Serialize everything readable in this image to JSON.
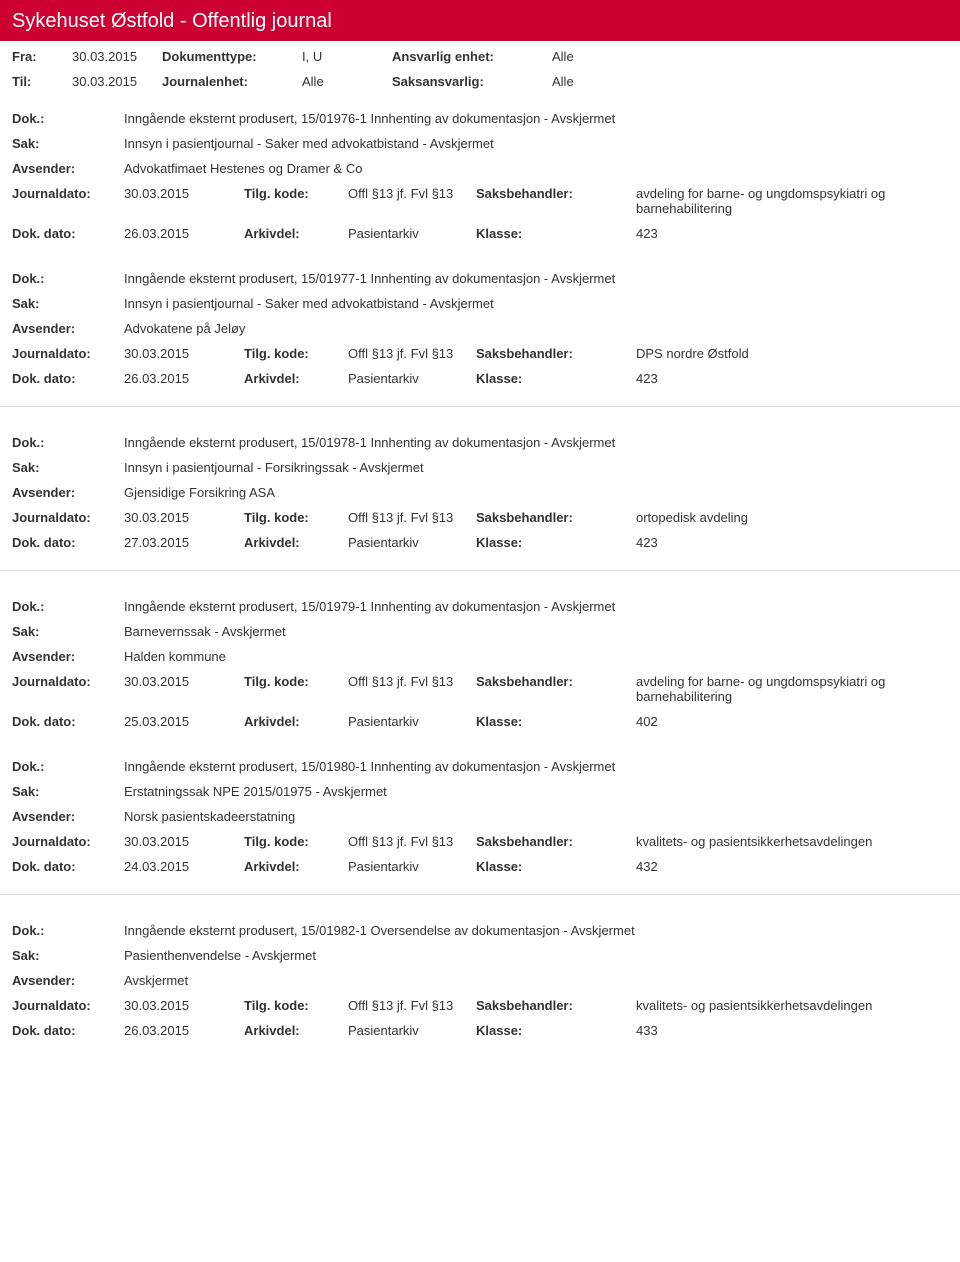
{
  "colors": {
    "header_bg": "#cc0033",
    "header_text": "#ffffff",
    "text": "#333333",
    "divider": "#dddddd",
    "bg": "#ffffff"
  },
  "header": {
    "title": "Sykehuset Østfold - Offentlig journal"
  },
  "meta": {
    "fra_label": "Fra:",
    "fra_value": "30.03.2015",
    "til_label": "Til:",
    "til_value": "30.03.2015",
    "doktype_label": "Dokumenttype:",
    "doktype_value": "I, U",
    "journalenhet_label": "Journalenhet:",
    "journalenhet_value": "Alle",
    "ansvarlig_label": "Ansvarlig enhet:",
    "ansvarlig_value": "Alle",
    "saksansvarlig_label": "Saksansvarlig:",
    "saksansvarlig_value": "Alle"
  },
  "labels": {
    "dok": "Dok.:",
    "sak": "Sak:",
    "avsender": "Avsender:",
    "journaldato": "Journaldato:",
    "dokdato": "Dok. dato:",
    "tilgkode": "Tilg. kode:",
    "arkivdel": "Arkivdel:",
    "saksbehandler": "Saksbehandler:",
    "klasse": "Klasse:"
  },
  "entries": [
    {
      "dok": "Inngående eksternt produsert, 15/01976-1 Innhenting av dokumentasjon - Avskjermet",
      "sak": "Innsyn i pasientjournal - Saker med advokatbistand - Avskjermet",
      "avsender": "Advokatfimaet Hestenes og Dramer & Co",
      "journaldato": "30.03.2015",
      "tilgkode": "Offl §13 jf. Fvl §13",
      "saksbehandler": "avdeling for barne- og ungdomspsykiatri og barnehabilitering",
      "dokdato": "26.03.2015",
      "arkivdel": "Pasientarkiv",
      "klasse": "423"
    },
    {
      "dok": "Inngående eksternt produsert, 15/01977-1 Innhenting av dokumentasjon - Avskjermet",
      "sak": "Innsyn i pasientjournal - Saker med advokatbistand - Avskjermet",
      "avsender": "Advokatene på Jeløy",
      "journaldato": "30.03.2015",
      "tilgkode": "Offl §13 jf. Fvl §13",
      "saksbehandler": "DPS nordre Østfold",
      "dokdato": "26.03.2015",
      "arkivdel": "Pasientarkiv",
      "klasse": "423"
    },
    {
      "dok": "Inngående eksternt produsert, 15/01978-1 Innhenting av dokumentasjon - Avskjermet",
      "sak": "Innsyn i pasientjournal - Forsikringssak - Avskjermet",
      "avsender": "Gjensidige Forsikring ASA",
      "journaldato": "30.03.2015",
      "tilgkode": "Offl §13 jf. Fvl §13",
      "saksbehandler": "ortopedisk avdeling",
      "dokdato": "27.03.2015",
      "arkivdel": "Pasientarkiv",
      "klasse": "423"
    },
    {
      "dok": "Inngående eksternt produsert, 15/01979-1 Innhenting av dokumentasjon - Avskjermet",
      "sak": "Barnevernssak - Avskjermet",
      "avsender": "Halden kommune",
      "journaldato": "30.03.2015",
      "tilgkode": "Offl §13 jf. Fvl §13",
      "saksbehandler": "avdeling for barne- og ungdomspsykiatri og barnehabilitering",
      "dokdato": "25.03.2015",
      "arkivdel": "Pasientarkiv",
      "klasse": "402"
    },
    {
      "dok": "Inngående eksternt produsert, 15/01980-1 Innhenting av dokumentasjon - Avskjermet",
      "sak": "Erstatningssak NPE 2015/01975 - Avskjermet",
      "avsender": "Norsk pasientskadeerstatning",
      "journaldato": "30.03.2015",
      "tilgkode": "Offl §13 jf. Fvl §13",
      "saksbehandler": "kvalitets- og pasientsikkerhetsavdelingen",
      "dokdato": "24.03.2015",
      "arkivdel": "Pasientarkiv",
      "klasse": "432"
    },
    {
      "dok": "Inngående eksternt produsert, 15/01982-1 Oversendelse av dokumentasjon - Avskjermet",
      "sak": "Pasienthenvendelse - Avskjermet",
      "avsender": "Avskjermet",
      "journaldato": "30.03.2015",
      "tilgkode": "Offl §13 jf. Fvl §13",
      "saksbehandler": "kvalitets- og pasientsikkerhetsavdelingen",
      "dokdato": "26.03.2015",
      "arkivdel": "Pasientarkiv",
      "klasse": "433"
    }
  ],
  "dividers_after": [
    1,
    2,
    4
  ]
}
